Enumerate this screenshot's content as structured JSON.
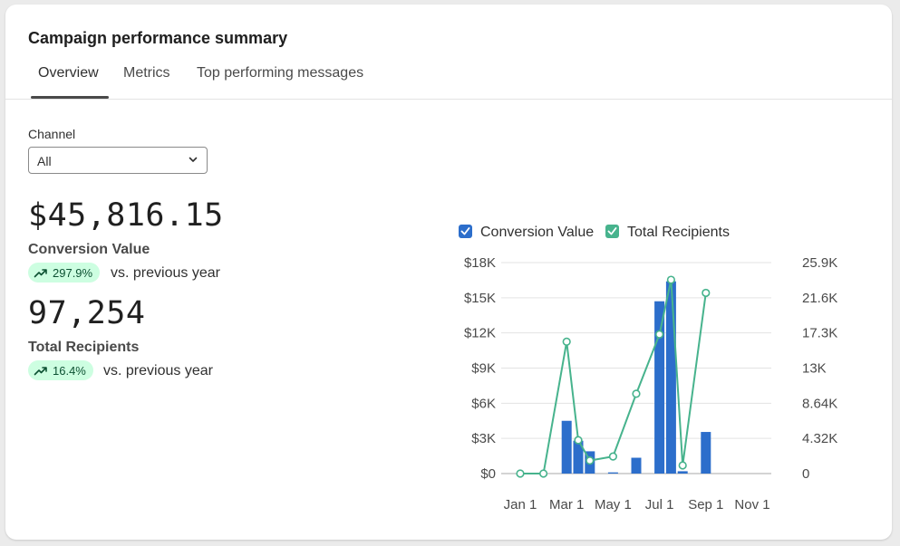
{
  "header": {
    "title": "Campaign performance summary"
  },
  "tabs": [
    {
      "label": "Overview",
      "active": true
    },
    {
      "label": "Metrics",
      "active": false
    },
    {
      "label": "Top performing messages",
      "active": false
    }
  ],
  "filter": {
    "label": "Channel",
    "selected": "All"
  },
  "metrics": [
    {
      "value": "$45,816.15",
      "label": "Conversion Value",
      "change": "297.9%",
      "comparison": "vs. previous year"
    },
    {
      "value": "97,254",
      "label": "Total Recipients",
      "change": "16.4%",
      "comparison": "vs. previous year"
    }
  ],
  "colors": {
    "bar": "#2c6ecb",
    "line": "#47b38d",
    "badge_bg": "#cdfee1",
    "badge_text": "#0c5132"
  },
  "chart_data": {
    "type": "bar",
    "legend": [
      "Conversion Value",
      "Total Recipients"
    ],
    "legend_position": "top",
    "grid": true,
    "x_ticks": [
      "Jan 1",
      "Mar 1",
      "May 1",
      "Jul 1",
      "Sep 1",
      "Nov 1"
    ],
    "y_left_ticks": [
      "$0",
      "$3K",
      "$6K",
      "$9K",
      "$12K",
      "$15K",
      "$18K"
    ],
    "y_right_ticks": [
      "0",
      "4.32K",
      "8.64K",
      "13K",
      "17.3K",
      "21.6K",
      "25.9K"
    ],
    "ylim_left": [
      0,
      18000
    ],
    "ylim_right": [
      0,
      25920
    ],
    "series": [
      {
        "name": "Conversion Value",
        "type": "bar",
        "axis": "left",
        "values": [
          0,
          0,
          4500,
          2800,
          1900,
          100,
          1350,
          14700,
          16400,
          200,
          3550
        ]
      },
      {
        "name": "Total Recipients",
        "type": "line",
        "axis": "right",
        "values": [
          0,
          0,
          16200,
          4100,
          1600,
          2100,
          9800,
          17100,
          23800,
          1000,
          22200
        ]
      }
    ],
    "points_per_month_index": [
      0,
      1,
      2,
      2.5,
      3,
      4,
      5,
      6,
      6.5,
      7,
      8
    ]
  }
}
